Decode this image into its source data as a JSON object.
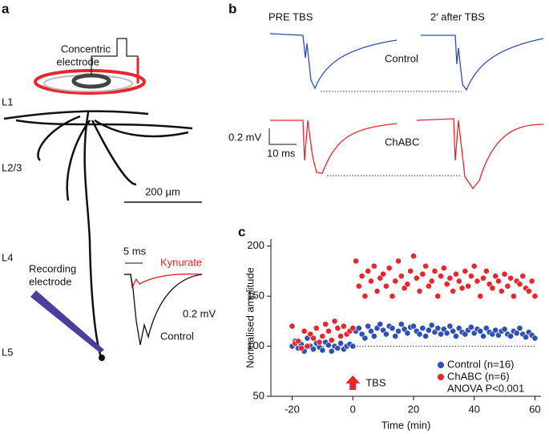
{
  "panels": {
    "a": {
      "label": "a",
      "layers": [
        "L1",
        "L2/3",
        "L4",
        "L5"
      ],
      "electrode_top": [
        "Concentric",
        "electrode"
      ],
      "scale": "200 µm",
      "electrode_bottom": [
        "Recording",
        "electrode"
      ],
      "inset": {
        "time": "5 ms",
        "drug": "Kynurate",
        "amp": "0.2 mV",
        "control": "Control"
      }
    },
    "b": {
      "label": "b",
      "pre": "PRE TBS",
      "post": "2′ after TBS",
      "row1": "Control",
      "row2": "ChABC",
      "amp": "0.2 mV",
      "time": "10 ms"
    },
    "c": {
      "label": "c"
    }
  },
  "chart_data": {
    "type": "scatter",
    "xlabel": "Time (min)",
    "ylabel": "Normalised amplitude",
    "xlim": [
      -27,
      62
    ],
    "xticks": [
      -20,
      0,
      20,
      40,
      60
    ],
    "ylim": [
      50,
      207
    ],
    "yticks": [
      50,
      100,
      150,
      200
    ],
    "reference_line": 100,
    "event": {
      "x": 0,
      "label": "TBS",
      "color": "#e8262b"
    },
    "annotation": "ANOVA P<0.001",
    "legend": "lower right",
    "x": [
      -20,
      -19,
      -18,
      -17,
      -16,
      -15,
      -14,
      -13,
      -12,
      -11,
      -10,
      -9,
      -8,
      -7,
      -6,
      -5,
      -4,
      -3,
      -2,
      -1,
      0,
      1,
      2,
      3,
      4,
      5,
      6,
      7,
      8,
      9,
      10,
      11,
      12,
      13,
      14,
      15,
      16,
      17,
      18,
      19,
      20,
      21,
      22,
      23,
      24,
      25,
      26,
      27,
      28,
      29,
      30,
      31,
      32,
      33,
      34,
      35,
      36,
      37,
      38,
      39,
      40,
      41,
      42,
      43,
      44,
      45,
      46,
      47,
      48,
      49,
      50,
      51,
      52,
      53,
      54,
      55,
      56,
      57,
      58,
      59,
      60
    ],
    "series": [
      {
        "name": "Control (n=16)",
        "color": "#2e4fb5",
        "values": [
          100,
          105,
          98,
          102,
          95,
          108,
          100,
          97,
          103,
          99,
          96,
          104,
          101,
          95,
          100,
          98,
          103,
          97,
          100,
          102,
          100,
          115,
          118,
          112,
          108,
          120,
          115,
          110,
          118,
          122,
          116,
          112,
          120,
          118,
          110,
          115,
          122,
          117,
          113,
          119,
          120,
          115,
          112,
          118,
          110,
          116,
          121,
          114,
          118,
          112,
          117,
          113,
          120,
          115,
          110,
          118,
          114,
          112,
          116,
          119,
          113,
          117,
          115,
          110,
          118,
          114,
          112,
          116,
          111,
          115,
          117,
          112,
          110,
          115,
          113,
          118,
          112,
          109,
          114,
          111,
          108
        ]
      },
      {
        "name": "ChABC (n=6)",
        "color": "#e8262b",
        "values": [
          120,
          103,
          105,
          98,
          115,
          100,
          112,
          108,
          118,
          104,
          110,
          122,
          115,
          106,
          125,
          118,
          110,
          120,
          112,
          115,
          118,
          185,
          160,
          170,
          150,
          175,
          165,
          180,
          155,
          168,
          172,
          160,
          178,
          150,
          165,
          185,
          170,
          158,
          162,
          175,
          190,
          168,
          155,
          172,
          180,
          160,
          165,
          175,
          150,
          170,
          178,
          162,
          168,
          155,
          172,
          165,
          158,
          175,
          160,
          170,
          180,
          165,
          150,
          168,
          175,
          162,
          158,
          170,
          165,
          155,
          172,
          160,
          168,
          150,
          165,
          162,
          170,
          158,
          155,
          165,
          150
        ]
      }
    ]
  }
}
